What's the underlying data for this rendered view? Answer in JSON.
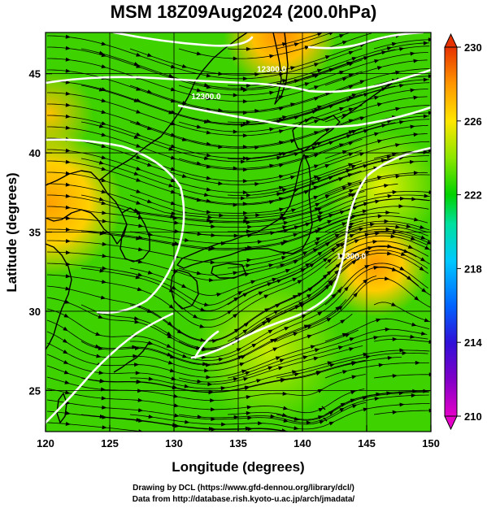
{
  "title": "MSM 18Z09Aug2024 (200.0hPa)",
  "credits": {
    "line1": "Drawing by DCL (https://www.gfd-dennou.org/library/dcl/)",
    "line2": "Data from http://database.rish.kyoto-u.ac.jp/arch/jmadata/"
  },
  "map": {
    "xlabel": "Longitude (degrees)",
    "ylabel": "Latitude  (degrees)",
    "lon_range": [
      120,
      150
    ],
    "lat_range": [
      22.4,
      47.6
    ],
    "lon_ticks": [
      120,
      125,
      130,
      135,
      140,
      145,
      150
    ],
    "lat_ticks": [
      25,
      30,
      35,
      40,
      45
    ],
    "contour_labels": [
      {
        "text": "12300.0",
        "lon": 137.6,
        "lat": 45.1
      },
      {
        "text": "12300.0",
        "lon": 132.5,
        "lat": 43.4
      },
      {
        "text": "12300.0",
        "lon": 143.8,
        "lat": 33.3
      }
    ],
    "colors": {
      "land_outline": "#000000",
      "contour": "#ffffff",
      "streamline": "#000000"
    }
  },
  "colorbar": {
    "min": 210,
    "max": 230,
    "ticks": [
      210,
      214,
      218,
      222,
      226,
      230
    ],
    "colors": [
      "#e400c8",
      "#5000c8",
      "#0050ff",
      "#00d2ff",
      "#00e08c",
      "#00d200",
      "#8ce600",
      "#ffe600",
      "#ff9600",
      "#e63200"
    ]
  }
}
